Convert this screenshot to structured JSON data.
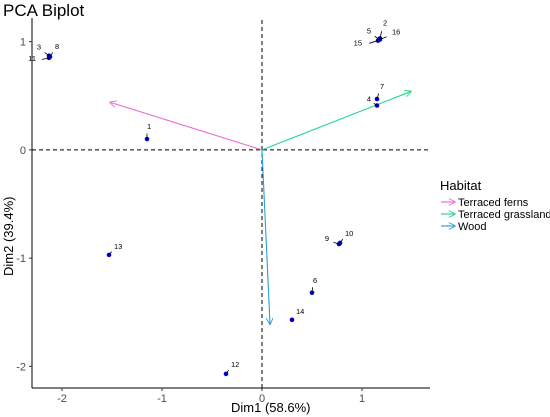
{
  "chart_data": {
    "type": "scatter",
    "title": "PCA Biplot",
    "xlabel": "Dim1 (58.6%)",
    "ylabel": "Dim2 (39.4%)",
    "xlim": [
      -2.3,
      1.7
    ],
    "ylim": [
      -2.2,
      1.2
    ],
    "xticks": [
      -2,
      -1,
      0,
      1
    ],
    "yticks": [
      -2,
      -1,
      0,
      1
    ],
    "grid": false,
    "reference_lines": {
      "x": 0,
      "y": 0,
      "style": "dashed"
    },
    "points": [
      {
        "label": "1",
        "x": -1.15,
        "y": 0.1
      },
      {
        "label": "2",
        "x": 1.18,
        "y": 1.03
      },
      {
        "label": "3",
        "x": -2.13,
        "y": 0.87
      },
      {
        "label": "4",
        "x": 1.15,
        "y": 0.41
      },
      {
        "label": "5",
        "x": 1.17,
        "y": 1.02
      },
      {
        "label": "6",
        "x": 0.5,
        "y": -1.32
      },
      {
        "label": "7",
        "x": 1.15,
        "y": 0.47
      },
      {
        "label": "8",
        "x": -2.12,
        "y": 0.86
      },
      {
        "label": "9",
        "x": 0.77,
        "y": -0.87
      },
      {
        "label": "10",
        "x": 0.78,
        "y": -0.86
      },
      {
        "label": "11",
        "x": -2.13,
        "y": 0.85
      },
      {
        "label": "12",
        "x": -0.36,
        "y": -2.07
      },
      {
        "label": "13",
        "x": -1.53,
        "y": -0.97
      },
      {
        "label": "14",
        "x": 0.3,
        "y": -1.57
      },
      {
        "label": "15",
        "x": 1.16,
        "y": 1.01
      },
      {
        "label": "16",
        "x": 1.18,
        "y": 1.02
      }
    ],
    "point_color": "#0000cc",
    "vectors": [
      {
        "name": "Terraced ferns",
        "x": -1.52,
        "y": 0.44,
        "color": "#ee6ad6"
      },
      {
        "name": "Terraced grassland",
        "x": 1.49,
        "y": 0.54,
        "color": "#22d88a"
      },
      {
        "name": "Wood",
        "x": 0.08,
        "y": -1.61,
        "color": "#2b9fd8"
      }
    ],
    "legend": {
      "title": "Habitat",
      "placement": "right",
      "entries": [
        "Terraced ferns",
        "Terraced grassland",
        "Wood"
      ]
    }
  }
}
